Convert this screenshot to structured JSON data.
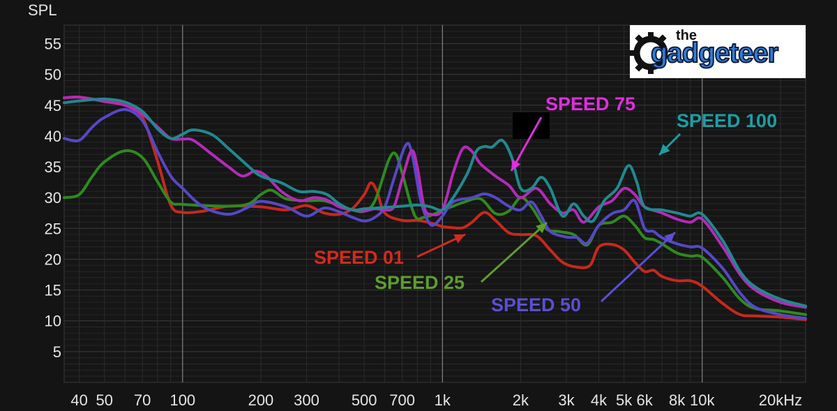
{
  "chart_data": {
    "type": "line",
    "ylabel": "SPL",
    "xscale": "log",
    "xlim": [
      35,
      25000
    ],
    "ylim": [
      0,
      58
    ],
    "yticks": [
      5,
      10,
      15,
      20,
      25,
      30,
      35,
      40,
      45,
      50,
      55
    ],
    "ytick_labels": [
      "5",
      "10",
      "15",
      "20",
      "25",
      "30",
      "35",
      "40",
      "45",
      "50",
      "55"
    ],
    "xticks": [
      40,
      50,
      70,
      100,
      200,
      300,
      500,
      700,
      1000,
      2000,
      3000,
      4000,
      5000,
      6000,
      8000,
      10000,
      20000
    ],
    "xtick_labels": [
      "40",
      "50",
      "70",
      "100",
      "200",
      "300",
      "500",
      "700",
      "1k",
      "2k",
      "3k",
      "4k",
      "5k",
      "6k",
      "8k",
      "10k",
      "20kHz"
    ],
    "grid": true,
    "series": [
      {
        "name": "SPEED 01",
        "color": "#c8281c",
        "points": [
          [
            35,
            46.2
          ],
          [
            40,
            46.3
          ],
          [
            50,
            45.7
          ],
          [
            60,
            45
          ],
          [
            70,
            43
          ],
          [
            80,
            36
          ],
          [
            90,
            28.8
          ],
          [
            100,
            27.6
          ],
          [
            120,
            27.8
          ],
          [
            150,
            28.6
          ],
          [
            200,
            28.5
          ],
          [
            250,
            28
          ],
          [
            300,
            28.7
          ],
          [
            350,
            27.5
          ],
          [
            400,
            27.3
          ],
          [
            450,
            28.2
          ],
          [
            500,
            30.5
          ],
          [
            530,
            32.4
          ],
          [
            560,
            31
          ],
          [
            600,
            27.5
          ],
          [
            700,
            26.3
          ],
          [
            800,
            26.3
          ],
          [
            900,
            25.9
          ],
          [
            1000,
            25.3
          ],
          [
            1100,
            25.1
          ],
          [
            1200,
            25.1
          ],
          [
            1300,
            26
          ],
          [
            1450,
            27.6
          ],
          [
            1600,
            26.3
          ],
          [
            1800,
            24.3
          ],
          [
            2000,
            24
          ],
          [
            2300,
            23.8
          ],
          [
            2600,
            21.5
          ],
          [
            2900,
            19.5
          ],
          [
            3300,
            18.7
          ],
          [
            3700,
            19
          ],
          [
            4000,
            22
          ],
          [
            4500,
            22.4
          ],
          [
            5000,
            21.5
          ],
          [
            5500,
            19.5
          ],
          [
            6000,
            18
          ],
          [
            6500,
            18.2
          ],
          [
            7000,
            17.2
          ],
          [
            8000,
            16.5
          ],
          [
            9000,
            16.5
          ],
          [
            10000,
            15.6
          ],
          [
            12000,
            12.8
          ],
          [
            14000,
            11
          ],
          [
            16000,
            10.8
          ],
          [
            20000,
            10.6
          ],
          [
            25000,
            10.2
          ]
        ]
      },
      {
        "name": "SPEED 25",
        "color": "#2f8a1e",
        "points": [
          [
            35,
            30
          ],
          [
            40,
            30.5
          ],
          [
            45,
            33.5
          ],
          [
            50,
            35.8
          ],
          [
            60,
            37.6
          ],
          [
            70,
            36.5
          ],
          [
            80,
            32.6
          ],
          [
            90,
            29.3
          ],
          [
            100,
            28.9
          ],
          [
            150,
            28.6
          ],
          [
            180,
            29
          ],
          [
            200,
            30.5
          ],
          [
            220,
            31.2
          ],
          [
            250,
            29.8
          ],
          [
            300,
            29.5
          ],
          [
            350,
            29.5
          ],
          [
            400,
            28.7
          ],
          [
            450,
            28
          ],
          [
            500,
            27.8
          ],
          [
            550,
            29.5
          ],
          [
            620,
            36
          ],
          [
            660,
            37.1
          ],
          [
            700,
            34
          ],
          [
            780,
            27.2
          ],
          [
            850,
            26.8
          ],
          [
            950,
            27.5
          ],
          [
            1000,
            28
          ],
          [
            1100,
            28.6
          ],
          [
            1200,
            29.2
          ],
          [
            1400,
            29.8
          ],
          [
            1600,
            27.4
          ],
          [
            1800,
            27.8
          ],
          [
            2000,
            30
          ],
          [
            2200,
            28.5
          ],
          [
            2500,
            25
          ],
          [
            2800,
            24.5
          ],
          [
            3200,
            24
          ],
          [
            3600,
            22.3
          ],
          [
            4000,
            25.5
          ],
          [
            4500,
            26
          ],
          [
            5000,
            27
          ],
          [
            5500,
            25.5
          ],
          [
            6000,
            23.5
          ],
          [
            6500,
            23.2
          ],
          [
            7000,
            22.5
          ],
          [
            8000,
            21
          ],
          [
            9000,
            20.5
          ],
          [
            10000,
            20.3
          ],
          [
            12000,
            17
          ],
          [
            14000,
            13.5
          ],
          [
            16000,
            12
          ],
          [
            20000,
            11.6
          ],
          [
            25000,
            11
          ]
        ]
      },
      {
        "name": "SPEED 50",
        "color": "#5548c8",
        "points": [
          [
            35,
            39.6
          ],
          [
            40,
            39.3
          ],
          [
            45,
            41.5
          ],
          [
            50,
            43
          ],
          [
            60,
            44.3
          ],
          [
            70,
            42.5
          ],
          [
            80,
            37.5
          ],
          [
            90,
            33.5
          ],
          [
            100,
            31.5
          ],
          [
            120,
            28.5
          ],
          [
            150,
            27.3
          ],
          [
            180,
            28.5
          ],
          [
            200,
            29.4
          ],
          [
            250,
            28.5
          ],
          [
            300,
            27
          ],
          [
            350,
            28.3
          ],
          [
            400,
            27.7
          ],
          [
            450,
            26.8
          ],
          [
            500,
            26.2
          ],
          [
            550,
            26.8
          ],
          [
            600,
            28.5
          ],
          [
            650,
            33
          ],
          [
            720,
            38.4
          ],
          [
            760,
            37.5
          ],
          [
            820,
            30
          ],
          [
            870,
            26.6
          ],
          [
            920,
            25.5
          ],
          [
            1000,
            27
          ],
          [
            1100,
            29.3
          ],
          [
            1300,
            30
          ],
          [
            1450,
            30.6
          ],
          [
            1600,
            30
          ],
          [
            1800,
            28.6
          ],
          [
            2000,
            28
          ],
          [
            2200,
            29.3
          ],
          [
            2400,
            27
          ],
          [
            2600,
            24.5
          ],
          [
            3000,
            23.6
          ],
          [
            3300,
            23.5
          ],
          [
            3600,
            22.6
          ],
          [
            4000,
            25.5
          ],
          [
            4500,
            27.4
          ],
          [
            5000,
            28
          ],
          [
            5500,
            29.5
          ],
          [
            6000,
            25
          ],
          [
            6500,
            24.5
          ],
          [
            7000,
            23.5
          ],
          [
            8000,
            22.5
          ],
          [
            9000,
            22
          ],
          [
            10000,
            21.8
          ],
          [
            12000,
            18.5
          ],
          [
            14000,
            14.5
          ],
          [
            16000,
            12.2
          ],
          [
            20000,
            11
          ],
          [
            25000,
            10.4
          ]
        ]
      },
      {
        "name": "SPEED 75",
        "color": "#b52ab8",
        "points": [
          [
            35,
            46.2
          ],
          [
            40,
            46.3
          ],
          [
            50,
            45.6
          ],
          [
            60,
            45
          ],
          [
            70,
            43.5
          ],
          [
            80,
            41.5
          ],
          [
            90,
            39.6
          ],
          [
            100,
            39.5
          ],
          [
            110,
            39.3
          ],
          [
            130,
            37
          ],
          [
            150,
            35
          ],
          [
            170,
            33.5
          ],
          [
            190,
            34.3
          ],
          [
            210,
            33.5
          ],
          [
            240,
            31
          ],
          [
            280,
            29.5
          ],
          [
            320,
            30
          ],
          [
            360,
            29.6
          ],
          [
            400,
            28.5
          ],
          [
            450,
            28
          ],
          [
            500,
            27.8
          ],
          [
            550,
            28.2
          ],
          [
            600,
            28
          ],
          [
            650,
            28.5
          ],
          [
            700,
            33
          ],
          [
            760,
            37.6
          ],
          [
            800,
            35
          ],
          [
            850,
            28.5
          ],
          [
            900,
            27.3
          ],
          [
            1000,
            28
          ],
          [
            1100,
            34
          ],
          [
            1200,
            38
          ],
          [
            1300,
            37.5
          ],
          [
            1400,
            35.5
          ],
          [
            1600,
            33.5
          ],
          [
            1800,
            32
          ],
          [
            2000,
            30
          ],
          [
            2300,
            31.5
          ],
          [
            2600,
            29
          ],
          [
            2900,
            27.5
          ],
          [
            3200,
            28
          ],
          [
            3500,
            26
          ],
          [
            4000,
            28.5
          ],
          [
            4500,
            29.5
          ],
          [
            5000,
            31.5
          ],
          [
            5500,
            30.5
          ],
          [
            6000,
            28.5
          ],
          [
            7000,
            27.5
          ],
          [
            8000,
            26.5
          ],
          [
            9000,
            26
          ],
          [
            10000,
            26.5
          ],
          [
            12000,
            22
          ],
          [
            14000,
            17.5
          ],
          [
            16000,
            15
          ],
          [
            20000,
            13
          ],
          [
            25000,
            12.2
          ]
        ]
      },
      {
        "name": "SPEED 100",
        "color": "#1f8a8f",
        "points": [
          [
            35,
            45.4
          ],
          [
            40,
            45.7
          ],
          [
            50,
            46
          ],
          [
            60,
            45.5
          ],
          [
            70,
            44
          ],
          [
            80,
            41.2
          ],
          [
            90,
            39.6
          ],
          [
            100,
            40.3
          ],
          [
            110,
            41
          ],
          [
            130,
            40.2
          ],
          [
            150,
            38
          ],
          [
            180,
            35
          ],
          [
            200,
            33.5
          ],
          [
            240,
            32.4
          ],
          [
            280,
            31
          ],
          [
            320,
            31
          ],
          [
            360,
            30.5
          ],
          [
            400,
            29
          ],
          [
            450,
            28
          ],
          [
            500,
            28.2
          ],
          [
            550,
            28.3
          ],
          [
            600,
            28.4
          ],
          [
            700,
            28.6
          ],
          [
            800,
            28.8
          ],
          [
            900,
            28.5
          ],
          [
            1000,
            28
          ],
          [
            1100,
            30
          ],
          [
            1250,
            34
          ],
          [
            1350,
            37.5
          ],
          [
            1450,
            38.3
          ],
          [
            1550,
            38.2
          ],
          [
            1700,
            39.3
          ],
          [
            1850,
            36.5
          ],
          [
            2000,
            31.5
          ],
          [
            2200,
            31.5
          ],
          [
            2400,
            33.3
          ],
          [
            2600,
            31.5
          ],
          [
            2900,
            27
          ],
          [
            3200,
            29
          ],
          [
            3500,
            27
          ],
          [
            3800,
            26.2
          ],
          [
            4200,
            29.5
          ],
          [
            4700,
            31.5
          ],
          [
            5200,
            35.2
          ],
          [
            5600,
            32.5
          ],
          [
            6000,
            28.5
          ],
          [
            7000,
            28
          ],
          [
            8000,
            27.5
          ],
          [
            9000,
            27
          ],
          [
            10000,
            27.3
          ],
          [
            12000,
            23
          ],
          [
            14000,
            18
          ],
          [
            16000,
            15.5
          ],
          [
            20000,
            13.5
          ],
          [
            25000,
            12.4
          ]
        ]
      }
    ],
    "annotations": [
      {
        "text": "SPEED 75",
        "color": "#e02ee0"
      },
      {
        "text": "SPEED 100",
        "color": "#1a9fa5"
      },
      {
        "text": "SPEED 01",
        "color": "#d42a1c"
      },
      {
        "text": "SPEED 25",
        "color": "#5e9e2e"
      },
      {
        "text": "SPEED 50",
        "color": "#5a4fd6"
      }
    ]
  },
  "logo": {
    "line1": "the",
    "line2": "gadgeteer"
  }
}
